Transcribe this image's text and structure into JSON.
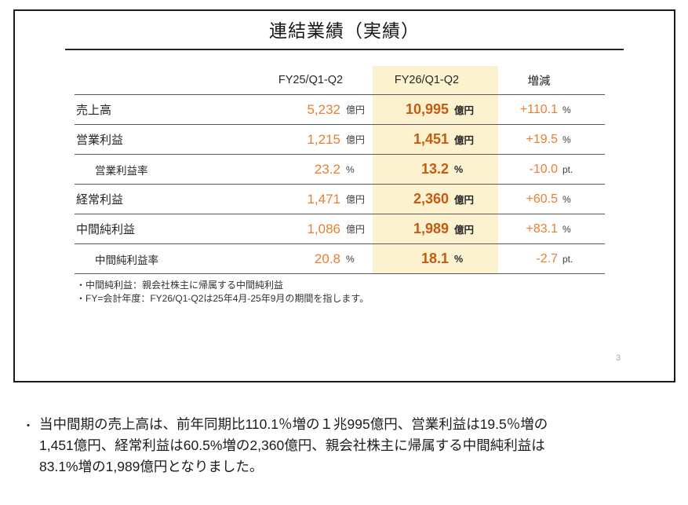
{
  "slide": {
    "title": "連結業績（実績）",
    "page_number": "3",
    "table": {
      "columns": {
        "fy25": "FY25/Q1-Q2",
        "fy26": "FY26/Q1-Q2",
        "change": "増減"
      },
      "rows": [
        {
          "label": "売上高",
          "fy25_value": "5,232",
          "fy25_unit": "億円",
          "fy26_value": "10,995",
          "fy26_unit": "億円",
          "change_value": "+110.1",
          "change_unit": "%"
        },
        {
          "label": "営業利益",
          "fy25_value": "1,215",
          "fy25_unit": "億円",
          "fy26_value": "1,451",
          "fy26_unit": "億円",
          "change_value": "+19.5",
          "change_unit": "%"
        },
        {
          "label": "営業利益率",
          "fy25_value": "23.2",
          "fy25_unit": "%",
          "fy26_value": "13.2",
          "fy26_unit": "%",
          "change_value": "-10.0",
          "change_unit": "pt."
        },
        {
          "label": "経常利益",
          "fy25_value": "1,471",
          "fy25_unit": "億円",
          "fy26_value": "2,360",
          "fy26_unit": "億円",
          "change_value": "+60.5",
          "change_unit": "%"
        },
        {
          "label": "中間純利益",
          "fy25_value": "1,086",
          "fy25_unit": "億円",
          "fy26_value": "1,989",
          "fy26_unit": "億円",
          "change_value": "+83.1",
          "change_unit": "%"
        },
        {
          "label": "中間純利益率",
          "fy25_value": "20.8",
          "fy25_unit": "%",
          "fy26_value": "18.1",
          "fy26_unit": "%",
          "change_value": "-2.7",
          "change_unit": "pt."
        }
      ],
      "footnotes": [
        "・中間純利益：親会社株主に帰属する中間純利益",
        "・FY=会計年度：FY26/Q1-Q2は25年4月-25年9月の期間を指します。"
      ]
    },
    "colors": {
      "highlight": "#FDF2D0",
      "accent_orange": "#ED7D31",
      "accent_dark_orange": "#C55A11"
    }
  },
  "commentary": {
    "bullet": "・",
    "line1": "当中間期の売上高は、前年同期比110.1％増の１兆995億円、営業利益は19.5％増の",
    "line2": "1,451億円、経常利益は60.5%増の2,360億円、親会社株主に帰属する中間純利益は",
    "line3": "83.1%増の1,989億円となりました。"
  }
}
